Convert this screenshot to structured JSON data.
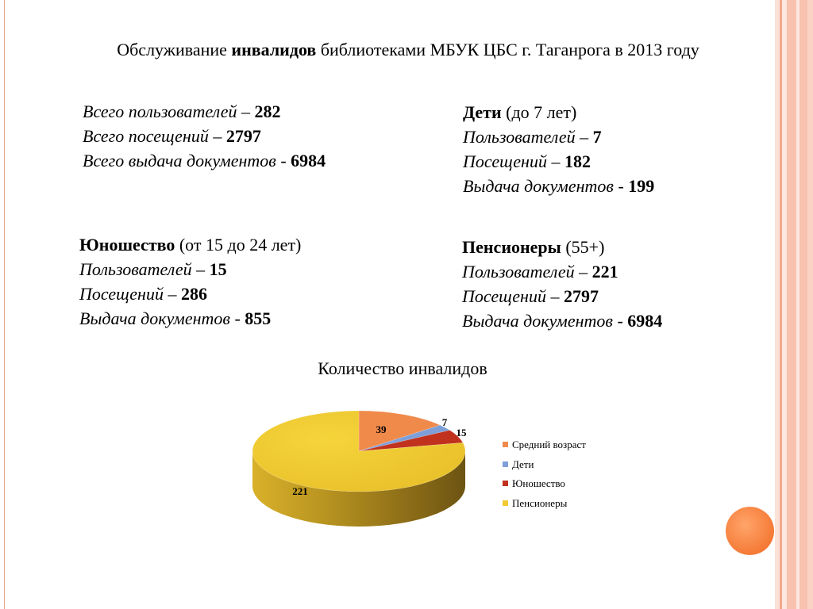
{
  "header": {
    "title_pre": "Обслуживание ",
    "title_bold": "инвалидов",
    "title_post": " библиотеками МБУК ЦБС г. Таганрога в 2013 году"
  },
  "totals": {
    "users_label": "Всего пользователей – ",
    "users_value": "282",
    "visits_label": "Всего посещений – ",
    "visits_value": "2797",
    "docs_label": "Всего выдача документов",
    "docs_sep": " - ",
    "docs_value": "6984"
  },
  "children": {
    "name": "Дети",
    "range": " (до 7 лет)",
    "users_label": "Пользователей – ",
    "users_value": "7",
    "visits_label": "Посещений – ",
    "visits_value": "182",
    "docs_label": "Выдача документов",
    "docs_sep": " - ",
    "docs_value": "199"
  },
  "youth": {
    "name": "Юношество",
    "range": " (от 15 до 24 лет)",
    "users_label": "Пользователей – ",
    "users_value": "15",
    "visits_label": "Посещений – ",
    "visits_value": "286",
    "docs_label": "Выдача документов",
    "docs_sep": " - ",
    "docs_value": "855"
  },
  "pensioners": {
    "name": "Пенсионеры",
    "range": " (55+)",
    "users_label": "Пользователей – ",
    "users_value": "221",
    "visits_label": "Посещений – ",
    "visits_value": "2797",
    "docs_label": "Выдача документов",
    "docs_sep": " - ",
    "docs_value": "6984"
  },
  "chart_data": {
    "type": "pie",
    "title": "Количество инвалидов",
    "categories": [
      "Средний возраст",
      "Дети",
      "Юношество",
      "Пенсионеры"
    ],
    "values": [
      39,
      7,
      15,
      221
    ],
    "data_labels": [
      "39",
      "7",
      "15",
      "221"
    ],
    "colors": [
      "#f08a4b",
      "#7e9fd8",
      "#c0311e",
      "#f2ca31"
    ],
    "legend_position": "right",
    "style": "3d"
  },
  "decor_colors": {
    "stripe_light": "#fbd9cd",
    "stripe_mid": "#f7b9a4",
    "accent_circle": "#f57a36"
  }
}
